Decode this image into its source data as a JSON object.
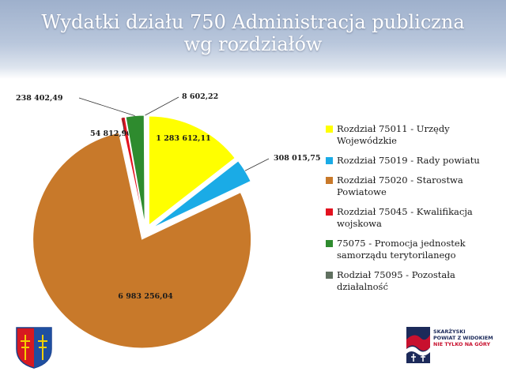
{
  "header": {
    "title_line1": "Wydatki działu 750 Administracja publiczna",
    "title_line2": "wg rozdziałów"
  },
  "colors": {
    "title": "#ffffff",
    "header_bg": "#a9b9d2"
  },
  "chart_data": {
    "type": "pie",
    "title": "Wydatki działu 750 Administracja publiczna wg rozdziałów",
    "exploded": true,
    "legend_position": "right",
    "slices": [
      {
        "legend": "Rozdział 75011 - Urzędy Wojewódzkie",
        "value": 1283612.11,
        "label": "1 283 612,11",
        "color": "#ffff00"
      },
      {
        "legend": "Rozdział 75019 - Rady powiatu",
        "value": 308015.75,
        "label": "308 015,75",
        "color": "#1aabe6"
      },
      {
        "legend": "Rozdział 75020 - Starostwa Powiatowe",
        "value": 6983256.04,
        "label": "6 983 256,04",
        "color": "#c8792a"
      },
      {
        "legend": "Rozdział 75045 - Kwalifikacja wojskowa",
        "value": 54812.9,
        "label": "54 812,90",
        "color": "#e3121f"
      },
      {
        "legend": "75075 - Promocja jednostek samorządu terytorilanego",
        "value": 238402.49,
        "label": "238 402,49",
        "color": "#2e8b2e"
      },
      {
        "legend": "Rodział 75095 - Pozostała działalność",
        "value": 8602.22,
        "label": "8 602,22",
        "color": "#607060"
      }
    ]
  },
  "logos": {
    "right_line1": "SKARŻYSKI",
    "right_line2": "POWIAT Z WIDOKIEM",
    "right_line3": "NIE TYLKO NA GÓRY"
  }
}
